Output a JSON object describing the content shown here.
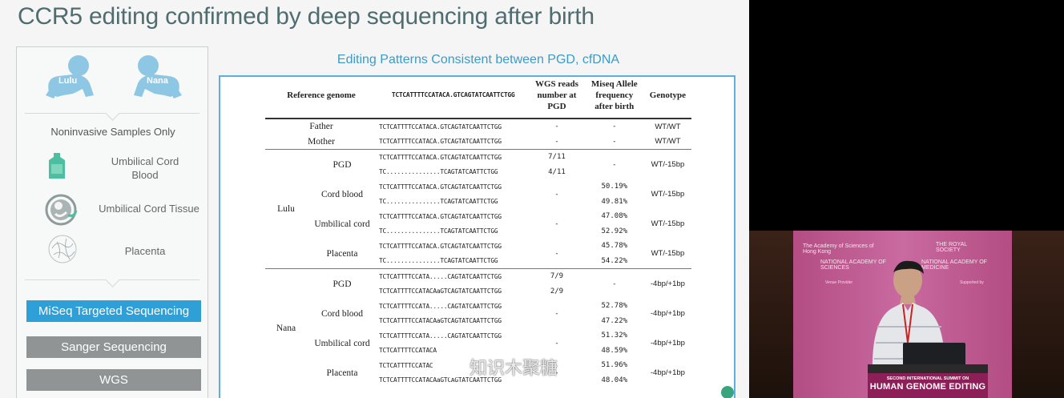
{
  "slide": {
    "title": "CCR5 editing confirmed by deep sequencing after birth",
    "babies": [
      {
        "name": "Lulu"
      },
      {
        "name": "Nana"
      }
    ],
    "noninvasive_label": "Noninvasive Samples Only",
    "samples": [
      {
        "label_line1": "Umbilical Cord",
        "label_line2": "Blood",
        "icon": "blood-bag-icon"
      },
      {
        "label": "Umbilical Cord Tissue",
        "icon": "fetus-icon"
      },
      {
        "label": "Placenta",
        "icon": "placenta-icon"
      }
    ],
    "methods": [
      {
        "label": "MiSeq Targeted Sequencing",
        "color": "#2f9fd8"
      },
      {
        "label": "Sanger Sequencing",
        "color": "#909494"
      },
      {
        "label": "WGS",
        "color": "#909494"
      }
    ],
    "table_title": "Editing Patterns Consistent between PGD, cfDNA",
    "table": {
      "headers": {
        "ref": "Reference genome",
        "ref_seq": "TCTCATTTTCCATACA.GTCAGTATCAATTCTGG",
        "wgs_1": "WGS reads",
        "wgs_2": "number at",
        "wgs_3": "PGD",
        "miseq_1": "Miseq Allele",
        "miseq_2": "frequency",
        "miseq_3": "after birth",
        "genotype": "Genotype"
      },
      "parents": [
        {
          "name": "Father",
          "seq": "TCTCATTTTCCATACA.GTCAGTATCAATTCTGG",
          "wgs": "-",
          "miseq": "-",
          "genotype": "WT/WT"
        },
        {
          "name": "Mother",
          "seq": "TCTCATTTTCCATACA.GTCAGTATCAATTCTGG",
          "wgs": "-",
          "miseq": "-",
          "genotype": "WT/WT"
        }
      ],
      "lulu": {
        "name": "Lulu",
        "samples": [
          {
            "name": "PGD",
            "seq1": "TCTCATTTTCCATACA.GTCAGTATCAATTCTGG",
            "seq2": "TC...............TCAGTATCAATTCTGG",
            "wgs1": "7/11",
            "wgs2": "4/11",
            "miseq1": "",
            "miseq2": "",
            "miseq_mid": "-",
            "wgs_mid": "",
            "genotype": "WT/-15bp"
          },
          {
            "name": "Cord blood",
            "seq1": "TCTCATTTTCCATACA.GTCAGTATCAATTCTGG",
            "seq2": "TC...............TCAGTATCAATTCTGG",
            "wgs1": "",
            "wgs2": "",
            "wgs_mid": "-",
            "miseq1": "50.19%",
            "miseq2": "49.81%",
            "miseq_mid": "",
            "genotype": "WT/-15bp"
          },
          {
            "name": "Umbilical cord",
            "seq1": "TCTCATTTTCCATACA.GTCAGTATCAATTCTGG",
            "seq2": "TC...............TCAGTATCAATTCTGG",
            "wgs1": "",
            "wgs2": "",
            "wgs_mid": "-",
            "miseq1": "47.08%",
            "miseq2": "52.92%",
            "miseq_mid": "",
            "genotype": "WT/-15bp"
          },
          {
            "name": "Placenta",
            "seq1": "TCTCATTTTCCATACA.GTCAGTATCAATTCTGG",
            "seq2": "TC...............TCAGTATCAATTCTGG",
            "wgs1": "",
            "wgs2": "",
            "wgs_mid": "-",
            "miseq1": "45.78%",
            "miseq2": "54.22%",
            "miseq_mid": "",
            "genotype": "WT/-15bp"
          }
        ]
      },
      "nana": {
        "name": "Nana",
        "samples": [
          {
            "name": "PGD",
            "seq1": "TCTCATTTTCCATA.....CAGTATCAATTCTGG",
            "seq2": "TCTCATTTTCCATACAaGTCAGTATCAATTCTGG",
            "wgs1": "7/9",
            "wgs2": "2/9",
            "miseq1": "",
            "miseq2": "",
            "miseq_mid": "-",
            "wgs_mid": "",
            "genotype": "-4bp/+1bp"
          },
          {
            "name": "Cord blood",
            "seq1": "TCTCATTTTCCATA.....CAGTATCAATTCTGG",
            "seq2": "TCTCATTTTCCATACAaGTCAGTATCAATTCTGG",
            "wgs1": "",
            "wgs2": "",
            "wgs_mid": "-",
            "miseq1": "52.78%",
            "miseq2": "47.22%",
            "miseq_mid": "",
            "genotype": "-4bp/+1bp"
          },
          {
            "name": "Umbilical cord",
            "seq1": "TCTCATTTTCCATA.....CAGTATCAATTCTGG",
            "seq2": "TCTCATTTTCCATACA",
            "wgs1": "",
            "wgs2": "",
            "wgs_mid": "-",
            "miseq1": "51.32%",
            "miseq2": "48.59%",
            "miseq_mid": "",
            "genotype": "-4bp/+1bp"
          },
          {
            "name": "Placenta",
            "seq1": "TCTCATTTTCCATAC",
            "seq2": "TCTCATTTTCCATACAaGTCAGTATCAATTCTGG",
            "wgs1": "",
            "wgs2": "",
            "wgs_mid": "-",
            "miseq1": "51.96%",
            "miseq2": "48.04%",
            "miseq_mid": "",
            "genotype": "-4bp/+1bp"
          }
        ]
      }
    },
    "watermark": "知识木聚糖"
  },
  "video": {
    "backdrop": {
      "org1": "The Academy of Sciences of Hong Kong",
      "org2": "THE ROYAL SOCIETY",
      "org3": "NATIONAL ACADEMY OF SCIENCES",
      "org4": "NATIONAL ACADEMY OF MEDICINE",
      "venue_label": "Venue Provider",
      "supported_label": "Supported by"
    },
    "banner_line1": "SECOND INTERNATIONAL SUMMIT ON",
    "banner_line2": "HUMAN GENOME EDITING"
  }
}
